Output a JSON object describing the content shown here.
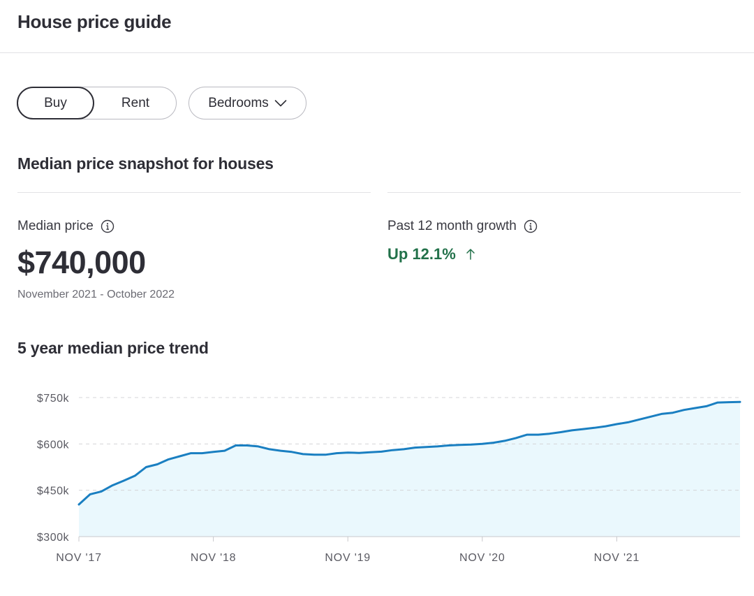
{
  "header": {
    "title": "House price guide"
  },
  "filters": {
    "tabs": [
      {
        "label": "Buy",
        "selected": true
      },
      {
        "label": "Rent",
        "selected": false
      }
    ],
    "bedrooms_label": "Bedrooms",
    "bedrooms_icon": "chevron-down-icon"
  },
  "snapshot": {
    "title": "Median price snapshot for houses",
    "median_label": "Median price",
    "median_value": "$740,000",
    "date_range": "November 2021 - October 2022",
    "growth_label": "Past 12 month growth",
    "growth_value": "Up 12.1%",
    "growth_icon": "arrow-up-icon",
    "info_icon": "info-icon"
  },
  "trend": {
    "title": "5 year median price trend"
  },
  "colors": {
    "accent_line": "#1a7fc1",
    "area_fill": "#eaf8fd",
    "positive": "#22714a",
    "text": "#2e2e36",
    "divider": "#e2e2e5"
  },
  "chart_data": {
    "type": "area",
    "title": "5 year median price trend",
    "xlabel": "",
    "ylabel": "",
    "ylim": [
      300000,
      750000
    ],
    "grid": true,
    "yticks": [
      {
        "value": 300000,
        "label": "$300k"
      },
      {
        "value": 450000,
        "label": "$450k"
      },
      {
        "value": 600000,
        "label": "$600k"
      },
      {
        "value": 750000,
        "label": "$750k"
      }
    ],
    "xticks": [
      {
        "index": 0,
        "label": "NOV '17"
      },
      {
        "index": 12,
        "label": "NOV '18"
      },
      {
        "index": 24,
        "label": "NOV '19"
      },
      {
        "index": 36,
        "label": "NOV '20"
      },
      {
        "index": 48,
        "label": "NOV '21"
      }
    ],
    "series": [
      {
        "name": "Median price",
        "values": [
          404000,
          437000,
          446000,
          466000,
          481000,
          497000,
          525000,
          534000,
          550000,
          560000,
          570000,
          570000,
          574000,
          578000,
          595000,
          595000,
          592000,
          583000,
          578000,
          574000,
          567000,
          565000,
          565000,
          570000,
          572000,
          571000,
          573000,
          575000,
          580000,
          583000,
          588000,
          590000,
          592000,
          595000,
          597000,
          598000,
          600000,
          604000,
          610000,
          619000,
          630000,
          630000,
          633000,
          638000,
          644000,
          648000,
          652000,
          657000,
          664000,
          670000,
          679000,
          688000,
          697000,
          701000,
          710000,
          716000,
          722000,
          734000,
          735000,
          736000
        ]
      }
    ]
  }
}
